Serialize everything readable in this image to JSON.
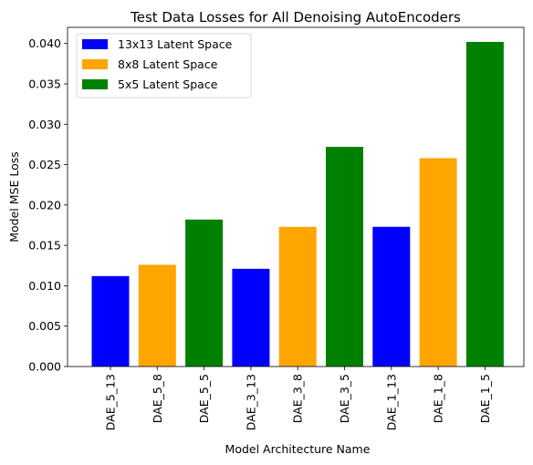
{
  "chart_data": {
    "type": "bar",
    "title": "Test Data Losses for All Denoising AutoEncoders",
    "xlabel": "Model Architecture Name",
    "ylabel": "Model MSE Loss",
    "ylim": [
      0,
      0.042
    ],
    "yticks": [
      "0.000",
      "0.005",
      "0.010",
      "0.015",
      "0.020",
      "0.025",
      "0.030",
      "0.035",
      "0.040"
    ],
    "ytick_values": [
      0,
      0.005,
      0.01,
      0.015,
      0.02,
      0.025,
      0.03,
      0.035,
      0.04
    ],
    "categories": [
      "DAE_5_13",
      "DAE_5_8",
      "DAE_5_5",
      "DAE_3_13",
      "DAE_3_8",
      "DAE_3_5",
      "DAE_1_13",
      "DAE_1_8",
      "DAE_1_5"
    ],
    "values": [
      0.0112,
      0.0126,
      0.0182,
      0.0121,
      0.0173,
      0.0272,
      0.0173,
      0.0258,
      0.0402
    ],
    "bar_groups": [
      0,
      1,
      2,
      0,
      1,
      2,
      0,
      1,
      2
    ],
    "legend": {
      "placement": "top-left",
      "entries": [
        {
          "label": "13x13 Latent Space",
          "color": "#0000ff"
        },
        {
          "label": "8x8 Latent Space",
          "color": "#ffa500"
        },
        {
          "label": "5x5 Latent Space",
          "color": "#008000"
        }
      ]
    },
    "grid": false
  }
}
